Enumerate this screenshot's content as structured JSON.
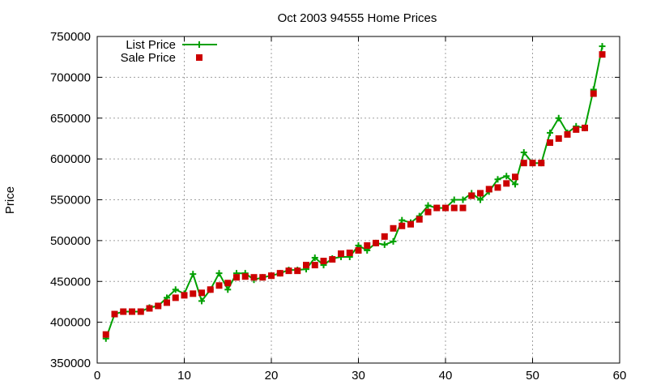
{
  "chart_data": {
    "type": "line",
    "title": "Oct 2003 94555 Home Prices",
    "xlabel": "",
    "ylabel": "Price",
    "xlim": [
      0,
      60
    ],
    "ylim": [
      350000,
      750000
    ],
    "x_ticks": [
      0,
      10,
      20,
      30,
      40,
      50,
      60
    ],
    "y_ticks": [
      350000,
      400000,
      450000,
      500000,
      550000,
      600000,
      650000,
      700000,
      750000
    ],
    "x_tick_labels": [
      "0",
      "10",
      "20",
      "30",
      "40",
      "50",
      "60"
    ],
    "y_tick_labels": [
      "350000",
      "400000",
      "450000",
      "500000",
      "550000",
      "600000",
      "650000",
      "700000",
      "750000"
    ],
    "grid": true,
    "legend_position": "top-left",
    "x": [
      1,
      2,
      3,
      4,
      5,
      6,
      7,
      8,
      9,
      10,
      11,
      12,
      13,
      14,
      15,
      16,
      17,
      18,
      19,
      20,
      21,
      22,
      23,
      24,
      25,
      26,
      27,
      28,
      29,
      30,
      31,
      32,
      33,
      34,
      35,
      36,
      37,
      38,
      39,
      40,
      41,
      42,
      43,
      44,
      45,
      46,
      47,
      48,
      49,
      50,
      51,
      52,
      53,
      54,
      55,
      56,
      57,
      58
    ],
    "series": [
      {
        "name": "List Price",
        "style": "line-plus",
        "color": "#00a000",
        "values": [
          380000,
          410000,
          413000,
          413000,
          413000,
          418000,
          420000,
          430000,
          440000,
          435000,
          459000,
          426000,
          440000,
          460000,
          440000,
          460000,
          460000,
          452000,
          455000,
          457000,
          460000,
          464000,
          464000,
          465000,
          479000,
          470000,
          478000,
          480000,
          480000,
          494000,
          488000,
          497000,
          495000,
          499000,
          525000,
          522000,
          530000,
          543000,
          540000,
          540000,
          550000,
          550000,
          558000,
          550000,
          560000,
          575000,
          579000,
          569000,
          608000,
          595000,
          595000,
          632000,
          650000,
          632000,
          640000,
          638000,
          685000,
          738000
        ]
      },
      {
        "name": "Sale Price",
        "style": "square-points",
        "color": "#cc0000",
        "values": [
          385000,
          410000,
          413000,
          413000,
          413000,
          417000,
          420000,
          424000,
          430000,
          433000,
          435000,
          436000,
          440000,
          445000,
          448000,
          455000,
          456000,
          455000,
          455000,
          457000,
          460000,
          463000,
          463000,
          470000,
          470000,
          475000,
          477000,
          484000,
          485000,
          488000,
          494000,
          497000,
          505000,
          515000,
          518000,
          520000,
          526000,
          535000,
          540000,
          540000,
          540000,
          540000,
          555000,
          558000,
          563000,
          565000,
          570000,
          578000,
          595000,
          595000,
          595000,
          620000,
          625000,
          630000,
          636000,
          638000,
          680000,
          728000
        ]
      }
    ]
  }
}
